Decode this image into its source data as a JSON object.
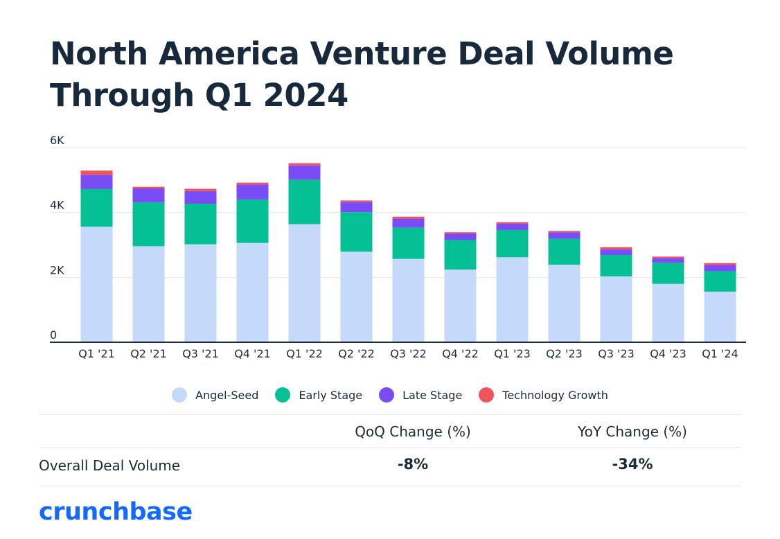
{
  "title_line1": "North America Venture Deal Volume",
  "title_line2": "Through Q1 2024",
  "chart_data": {
    "type": "bar",
    "stacked": true,
    "title": "North America Venture Deal Volume Through Q1 2024",
    "categories": [
      "Q1 '21",
      "Q2 '21",
      "Q3 '21",
      "Q4 '21",
      "Q1 '22",
      "Q2 '22",
      "Q3 '22",
      "Q4 '22",
      "Q1 '23",
      "Q2 '23",
      "Q3 '23",
      "Q4 '23",
      "Q1 '24"
    ],
    "series": [
      {
        "name": "Angel-Seed",
        "color": "#c5d9fb",
        "values": [
          3560,
          2960,
          3020,
          3060,
          3640,
          2790,
          2570,
          2240,
          2620,
          2390,
          2030,
          1800,
          1560
        ]
      },
      {
        "name": "Early Stage",
        "color": "#05bf95",
        "values": [
          1160,
          1350,
          1250,
          1340,
          1370,
          1220,
          960,
          910,
          840,
          800,
          660,
          650,
          630
        ]
      },
      {
        "name": "Late Stage",
        "color": "#7a4cf5",
        "values": [
          440,
          430,
          390,
          460,
          440,
          310,
          280,
          200,
          190,
          200,
          170,
          150,
          190
        ]
      },
      {
        "name": "Technology Growth",
        "color": "#f2545b",
        "values": [
          130,
          50,
          70,
          60,
          70,
          50,
          60,
          40,
          50,
          40,
          70,
          40,
          60
        ]
      }
    ],
    "yticks": [
      "0",
      "2K",
      "4K",
      "6K"
    ],
    "ytick_values": [
      0,
      2000,
      4000,
      6000
    ],
    "ylim": [
      0,
      6000
    ],
    "xlabel": "",
    "ylabel": "",
    "grid": true,
    "legend": "bottom"
  },
  "legend": [
    {
      "label": "Angel-Seed",
      "color": "#c5d9fb"
    },
    {
      "label": "Early Stage",
      "color": "#05bf95"
    },
    {
      "label": "Late Stage",
      "color": "#7a4cf5"
    },
    {
      "label": "Technology Growth",
      "color": "#f2545b"
    }
  ],
  "table": {
    "col_qoq": "QoQ Change (%)",
    "col_yoy": "YoY Change (%)",
    "row_label": "Overall Deal Volume",
    "qoq_value": "-8%",
    "yoy_value": "-34%"
  },
  "logo": "crunchbase"
}
